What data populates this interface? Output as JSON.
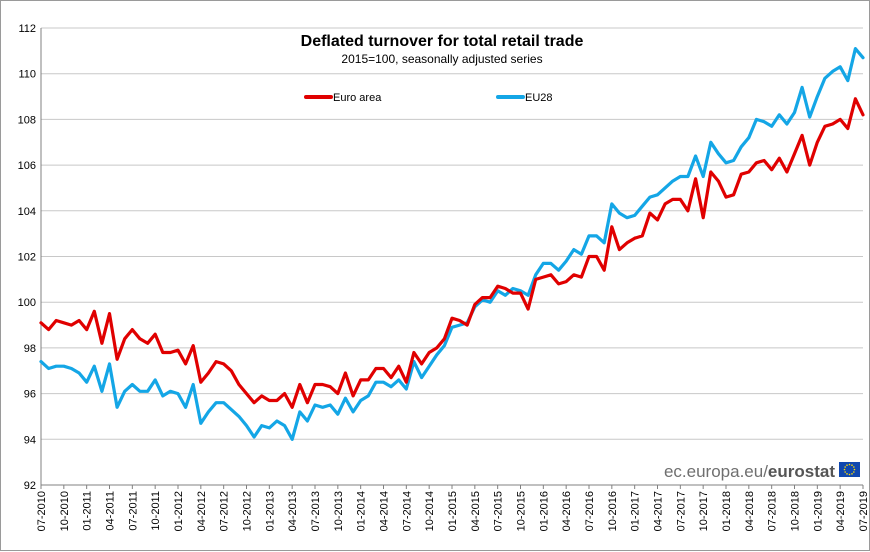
{
  "chart_data": {
    "type": "line",
    "title": "Deflated turnover for total retail trade",
    "subtitle": "2015=100, seasonally adjusted series",
    "xlabel": "",
    "ylabel": "",
    "ylim": [
      92,
      112
    ],
    "yticks": [
      92,
      94,
      96,
      98,
      100,
      102,
      104,
      106,
      108,
      110,
      112
    ],
    "grid": true,
    "legend_position": "top-center",
    "x_tick_labels": [
      "07-2010",
      "10-2010",
      "01-2011",
      "04-2011",
      "07-2011",
      "10-2011",
      "01-2012",
      "04-2012",
      "07-2012",
      "10-2012",
      "01-2013",
      "04-2013",
      "07-2013",
      "10-2013",
      "01-2014",
      "04-2014",
      "07-2014",
      "10-2014",
      "01-2015",
      "04-2015",
      "07-2015",
      "10-2015",
      "01-2016",
      "04-2016",
      "07-2016",
      "10-2016",
      "01-2017",
      "04-2017",
      "07-2017",
      "10-2017",
      "01-2018",
      "04-2018",
      "07-2018",
      "10-2018",
      "01-2019",
      "04-2019",
      "07-2019"
    ],
    "series": [
      {
        "name": "Euro area",
        "color": "#e00000",
        "values": [
          99.1,
          98.8,
          99.2,
          99.1,
          99.0,
          99.2,
          98.8,
          99.6,
          98.2,
          99.5,
          97.5,
          98.4,
          98.8,
          98.4,
          98.2,
          98.6,
          97.8,
          97.8,
          97.9,
          97.3,
          98.1,
          96.5,
          96.9,
          97.4,
          97.3,
          97.0,
          96.4,
          96.0,
          95.6,
          95.9,
          95.7,
          95.7,
          96.0,
          95.4,
          96.4,
          95.6,
          96.4,
          96.4,
          96.3,
          96.0,
          96.9,
          95.9,
          96.6,
          96.6,
          97.1,
          97.1,
          96.7,
          97.2,
          96.5,
          97.8,
          97.3,
          97.8,
          98.0,
          98.4,
          99.3,
          99.2,
          99.0,
          99.9,
          100.2,
          100.2,
          100.7,
          100.6,
          100.4,
          100.4,
          99.7,
          101.0,
          101.1,
          101.2,
          100.8,
          100.9,
          101.2,
          101.1,
          102.0,
          102.0,
          101.4,
          103.3,
          102.3,
          102.6,
          102.8,
          102.9,
          103.9,
          103.6,
          104.3,
          104.5,
          104.5,
          104.0,
          105.4,
          103.7,
          105.7,
          105.3,
          104.6,
          104.7,
          105.6,
          105.7,
          106.1,
          106.2,
          105.8,
          106.3,
          105.7,
          106.5,
          107.3,
          106.0,
          107.0,
          107.7,
          107.8,
          108.0,
          107.6,
          108.9,
          108.2
        ]
      },
      {
        "name": "EU28",
        "color": "#14a6e6",
        "values": [
          97.4,
          97.1,
          97.2,
          97.2,
          97.1,
          96.9,
          96.5,
          97.2,
          96.1,
          97.3,
          95.4,
          96.1,
          96.4,
          96.1,
          96.1,
          96.6,
          95.9,
          96.1,
          96.0,
          95.4,
          96.4,
          94.7,
          95.2,
          95.6,
          95.6,
          95.3,
          95.0,
          94.6,
          94.1,
          94.6,
          94.5,
          94.8,
          94.6,
          94.0,
          95.2,
          94.8,
          95.5,
          95.4,
          95.5,
          95.1,
          95.8,
          95.2,
          95.7,
          95.9,
          96.5,
          96.5,
          96.3,
          96.6,
          96.2,
          97.4,
          96.7,
          97.2,
          97.7,
          98.1,
          98.9,
          99.0,
          99.1,
          99.8,
          100.1,
          100.0,
          100.5,
          100.3,
          100.6,
          100.5,
          100.3,
          101.2,
          101.7,
          101.7,
          101.4,
          101.8,
          102.3,
          102.1,
          102.9,
          102.9,
          102.6,
          104.3,
          103.9,
          103.7,
          103.8,
          104.2,
          104.6,
          104.7,
          105.0,
          105.3,
          105.5,
          105.5,
          106.4,
          105.5,
          107.0,
          106.5,
          106.1,
          106.2,
          106.8,
          107.2,
          108.0,
          107.9,
          107.7,
          108.2,
          107.8,
          108.3,
          109.4,
          108.1,
          109.0,
          109.8,
          110.1,
          110.3,
          109.7,
          111.1,
          110.7
        ]
      }
    ]
  },
  "branding": {
    "url_text": "ec.europa.eu/",
    "brand_text": "eurostat",
    "flag_color": "#0f47af",
    "star_color": "#ffdd00"
  }
}
